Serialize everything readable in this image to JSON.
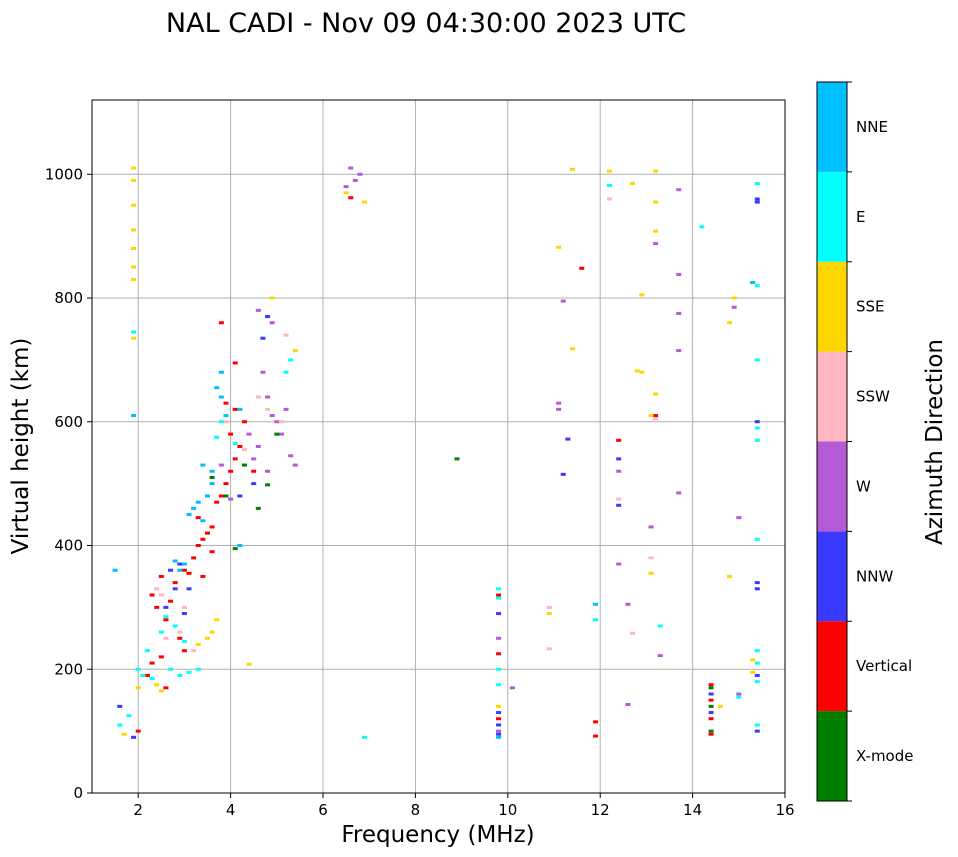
{
  "chart_data": {
    "type": "scatter",
    "title": "NAL CADI - Nov 09 04:30:00 2023 UTC",
    "xlabel": "Frequency (MHz)",
    "ylabel": "Virtual height (km)",
    "xlim": [
      1.0,
      16.0
    ],
    "ylim": [
      0,
      1120
    ],
    "xticks": [
      2,
      4,
      6,
      8,
      10,
      12,
      14,
      16
    ],
    "yticks": [
      0,
      200,
      400,
      600,
      800,
      1000
    ],
    "grid": true,
    "colorbar": {
      "label": "Azimuth Direction",
      "categories": [
        {
          "name": "X-mode",
          "color": "#008000"
        },
        {
          "name": "Vertical",
          "color": "#ff0000"
        },
        {
          "name": "NNW",
          "color": "#3a3aff"
        },
        {
          "name": "W",
          "color": "#b45ad6"
        },
        {
          "name": "SSW",
          "color": "#ffb6c1"
        },
        {
          "name": "SSE",
          "color": "#ffd700"
        },
        {
          "name": "E",
          "color": "#00ffff"
        },
        {
          "name": "NNE",
          "color": "#00bfff"
        }
      ]
    },
    "series": [
      {
        "name": "Vertical",
        "points": [
          [
            2.5,
            350
          ],
          [
            2.8,
            340
          ],
          [
            3.0,
            360
          ],
          [
            3.1,
            355
          ],
          [
            3.2,
            380
          ],
          [
            3.3,
            400
          ],
          [
            3.4,
            410
          ],
          [
            3.5,
            420
          ],
          [
            3.6,
            430
          ],
          [
            3.3,
            445
          ],
          [
            3.7,
            470
          ],
          [
            3.8,
            480
          ],
          [
            3.9,
            500
          ],
          [
            4.0,
            520
          ],
          [
            4.1,
            540
          ],
          [
            4.2,
            560
          ],
          [
            4.0,
            580
          ],
          [
            4.3,
            600
          ],
          [
            4.1,
            620
          ],
          [
            3.9,
            630
          ],
          [
            4.1,
            695
          ],
          [
            3.8,
            760
          ],
          [
            2.6,
            280
          ],
          [
            2.4,
            300
          ],
          [
            2.3,
            320
          ],
          [
            2.7,
            310
          ],
          [
            2.9,
            250
          ],
          [
            3.0,
            230
          ],
          [
            2.2,
            190
          ],
          [
            2.3,
            210
          ],
          [
            2.5,
            220
          ],
          [
            2.6,
            170
          ],
          [
            12.4,
            570
          ],
          [
            13.2,
            610
          ],
          [
            11.6,
            848
          ],
          [
            6.6,
            962
          ],
          [
            9.8,
            120
          ],
          [
            9.8,
            225
          ],
          [
            9.8,
            320
          ],
          [
            11.9,
            92
          ],
          [
            11.9,
            115
          ],
          [
            14.4,
            95
          ],
          [
            14.4,
            120
          ],
          [
            14.4,
            150
          ],
          [
            14.4,
            175
          ],
          [
            3.4,
            350
          ],
          [
            3.6,
            390
          ],
          [
            4.5,
            520
          ],
          [
            2.0,
            100
          ]
        ]
      },
      {
        "name": "NNW",
        "points": [
          [
            2.7,
            360
          ],
          [
            2.9,
            370
          ],
          [
            3.1,
            330
          ],
          [
            2.6,
            300
          ],
          [
            3.0,
            290
          ],
          [
            4.7,
            735
          ],
          [
            4.8,
            770
          ],
          [
            4.2,
            480
          ],
          [
            4.5,
            500
          ],
          [
            9.8,
            95
          ],
          [
            9.8,
            110
          ],
          [
            9.8,
            130
          ],
          [
            9.8,
            290
          ],
          [
            11.3,
            572
          ],
          [
            11.2,
            515
          ],
          [
            12.4,
            540
          ],
          [
            12.4,
            465
          ],
          [
            15.4,
            340
          ],
          [
            15.4,
            330
          ],
          [
            15.4,
            190
          ],
          [
            15.4,
            100
          ],
          [
            15.4,
            960
          ],
          [
            15.4,
            955
          ],
          [
            15.4,
            600
          ],
          [
            1.9,
            90
          ],
          [
            1.6,
            140
          ],
          [
            2.8,
            330
          ],
          [
            14.4,
            130
          ],
          [
            14.4,
            160
          ]
        ]
      },
      {
        "name": "W",
        "points": [
          [
            4.6,
            780
          ],
          [
            4.9,
            760
          ],
          [
            4.7,
            680
          ],
          [
            4.8,
            640
          ],
          [
            5.0,
            600
          ],
          [
            5.1,
            580
          ],
          [
            4.6,
            560
          ],
          [
            4.5,
            540
          ],
          [
            4.8,
            520
          ],
          [
            5.3,
            545
          ],
          [
            5.4,
            530
          ],
          [
            4.9,
            610
          ],
          [
            5.2,
            620
          ],
          [
            4.4,
            580
          ],
          [
            6.6,
            1010
          ],
          [
            6.8,
            1000
          ],
          [
            6.7,
            990
          ],
          [
            6.5,
            980
          ],
          [
            11.1,
            630
          ],
          [
            11.1,
            620
          ],
          [
            12.4,
            520
          ],
          [
            13.1,
            430
          ],
          [
            13.7,
            485
          ],
          [
            13.7,
            715
          ],
          [
            13.7,
            775
          ],
          [
            13.7,
            838
          ],
          [
            13.7,
            975
          ],
          [
            13.2,
            888
          ],
          [
            15.0,
            445
          ],
          [
            15.0,
            160
          ],
          [
            14.9,
            785
          ],
          [
            12.4,
            370
          ],
          [
            12.6,
            305
          ],
          [
            13.3,
            222
          ],
          [
            12.6,
            143
          ],
          [
            11.2,
            795
          ],
          [
            10.1,
            170
          ],
          [
            9.8,
            100
          ],
          [
            9.8,
            250
          ],
          [
            4.0,
            475
          ],
          [
            3.8,
            530
          ]
        ]
      },
      {
        "name": "SSW",
        "points": [
          [
            2.4,
            330
          ],
          [
            2.5,
            320
          ],
          [
            2.6,
            250
          ],
          [
            3.2,
            230
          ],
          [
            3.0,
            300
          ],
          [
            2.9,
            260
          ],
          [
            4.6,
            640
          ],
          [
            4.8,
            620
          ],
          [
            5.1,
            600
          ],
          [
            5.2,
            740
          ],
          [
            13.1,
            380
          ],
          [
            13.2,
            605
          ],
          [
            12.7,
            258
          ],
          [
            10.9,
            233
          ],
          [
            10.9,
            300
          ],
          [
            12.2,
            960
          ],
          [
            12.4,
            475
          ],
          [
            4.3,
            555
          ],
          [
            3.9,
            600
          ]
        ]
      },
      {
        "name": "SSE",
        "points": [
          [
            1.9,
            1010
          ],
          [
            1.9,
            990
          ],
          [
            1.9,
            950
          ],
          [
            1.9,
            910
          ],
          [
            1.9,
            880
          ],
          [
            1.9,
            850
          ],
          [
            1.9,
            830
          ],
          [
            1.9,
            735
          ],
          [
            2.5,
            165
          ],
          [
            2.4,
            175
          ],
          [
            3.5,
            250
          ],
          [
            3.6,
            260
          ],
          [
            3.7,
            280
          ],
          [
            3.3,
            240
          ],
          [
            4.4,
            208
          ],
          [
            4.9,
            800
          ],
          [
            5.4,
            715
          ],
          [
            11.4,
            718
          ],
          [
            11.1,
            882
          ],
          [
            11.4,
            1008
          ],
          [
            12.2,
            1005
          ],
          [
            12.7,
            985
          ],
          [
            13.2,
            1005
          ],
          [
            13.2,
            955
          ],
          [
            13.2,
            908
          ],
          [
            12.9,
            805
          ],
          [
            12.9,
            680
          ],
          [
            12.8,
            682
          ],
          [
            13.2,
            645
          ],
          [
            13.1,
            610
          ],
          [
            13.1,
            355
          ],
          [
            10.9,
            290
          ],
          [
            15.3,
            215
          ],
          [
            15.3,
            195
          ],
          [
            14.8,
            350
          ],
          [
            14.9,
            800
          ],
          [
            14.8,
            760
          ],
          [
            14.6,
            140
          ],
          [
            9.8,
            140
          ],
          [
            1.7,
            95
          ],
          [
            6.9,
            955
          ],
          [
            6.5,
            970
          ],
          [
            2.0,
            170
          ]
        ]
      },
      {
        "name": "E",
        "points": [
          [
            2.0,
            200
          ],
          [
            2.1,
            190
          ],
          [
            2.3,
            185
          ],
          [
            2.7,
            200
          ],
          [
            2.9,
            190
          ],
          [
            3.1,
            195
          ],
          [
            3.3,
            200
          ],
          [
            2.2,
            230
          ],
          [
            2.5,
            260
          ],
          [
            2.8,
            270
          ],
          [
            3.0,
            245
          ],
          [
            2.6,
            285
          ],
          [
            4.1,
            565
          ],
          [
            3.8,
            600
          ],
          [
            3.7,
            575
          ],
          [
            5.2,
            680
          ],
          [
            5.3,
            700
          ],
          [
            9.8,
            175
          ],
          [
            9.8,
            200
          ],
          [
            9.8,
            315
          ],
          [
            9.8,
            330
          ],
          [
            11.9,
            280
          ],
          [
            12.2,
            982
          ],
          [
            13.3,
            270
          ],
          [
            15.4,
            985
          ],
          [
            15.4,
            820
          ],
          [
            15.4,
            700
          ],
          [
            15.4,
            590
          ],
          [
            15.4,
            570
          ],
          [
            15.4,
            410
          ],
          [
            15.4,
            230
          ],
          [
            15.4,
            210
          ],
          [
            15.4,
            180
          ],
          [
            15.4,
            110
          ],
          [
            14.2,
            915
          ],
          [
            15.0,
            155
          ],
          [
            1.6,
            110
          ],
          [
            1.8,
            125
          ],
          [
            6.9,
            90
          ],
          [
            1.9,
            745
          ]
        ]
      },
      {
        "name": "NNE",
        "points": [
          [
            3.2,
            460
          ],
          [
            3.3,
            470
          ],
          [
            3.5,
            480
          ],
          [
            3.6,
            500
          ],
          [
            3.4,
            440
          ],
          [
            3.1,
            450
          ],
          [
            3.9,
            610
          ],
          [
            3.7,
            655
          ],
          [
            3.8,
            680
          ],
          [
            4.2,
            620
          ],
          [
            3.6,
            520
          ],
          [
            2.9,
            360
          ],
          [
            3.0,
            370
          ],
          [
            3.4,
            530
          ],
          [
            11.9,
            305
          ],
          [
            15.3,
            825
          ],
          [
            9.8,
            90
          ],
          [
            1.5,
            360
          ],
          [
            1.9,
            610
          ],
          [
            4.2,
            400
          ],
          [
            2.8,
            375
          ],
          [
            3.8,
            640
          ]
        ]
      },
      {
        "name": "X-mode",
        "points": [
          [
            8.9,
            540
          ],
          [
            14.4,
            100
          ],
          [
            14.4,
            140
          ],
          [
            14.4,
            170
          ],
          [
            3.9,
            480
          ],
          [
            4.1,
            395
          ],
          [
            4.6,
            460
          ],
          [
            4.3,
            530
          ],
          [
            3.6,
            510
          ],
          [
            4.8,
            498
          ],
          [
            5.0,
            580
          ]
        ]
      }
    ]
  }
}
